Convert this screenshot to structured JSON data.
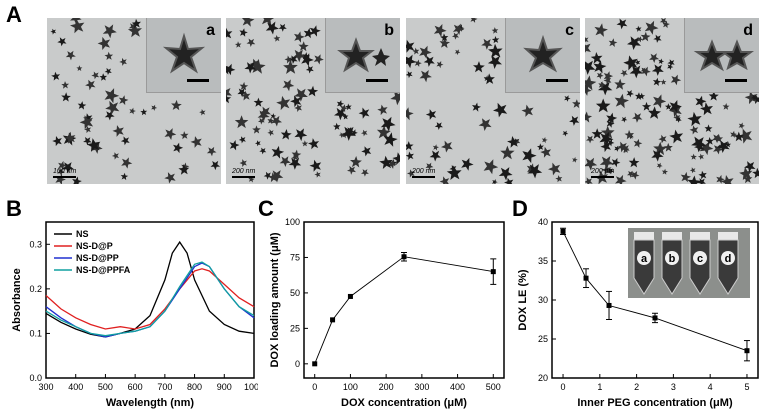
{
  "panel_labels": {
    "A": "A",
    "B": "B",
    "C": "C",
    "D": "D"
  },
  "tem_panels": [
    {
      "letter": "a",
      "scale": "100 nm"
    },
    {
      "letter": "b",
      "scale": "200 nm"
    },
    {
      "letter": "c",
      "scale": "200 nm"
    },
    {
      "letter": "d",
      "scale": "200 nm"
    }
  ],
  "chart_data": [
    {
      "id": "B",
      "type": "line",
      "xlabel": "Wavelength (nm)",
      "ylabel": "Absorbance",
      "xlim": [
        300,
        1000
      ],
      "ylim": [
        0,
        0.35
      ],
      "xticks": [
        300,
        400,
        500,
        600,
        700,
        800,
        900,
        1000
      ],
      "yticks": [
        0.0,
        0.1,
        0.2,
        0.3
      ],
      "legend_position": "top-left",
      "series": [
        {
          "name": "NS",
          "color": "#000000",
          "x": [
            300,
            350,
            400,
            450,
            500,
            550,
            600,
            650,
            700,
            725,
            750,
            775,
            800,
            850,
            900,
            950,
            1000
          ],
          "y": [
            0.145,
            0.125,
            0.11,
            0.098,
            0.092,
            0.1,
            0.11,
            0.14,
            0.22,
            0.28,
            0.305,
            0.28,
            0.22,
            0.15,
            0.12,
            0.105,
            0.1
          ]
        },
        {
          "name": "NS-D@P",
          "color": "#e02020",
          "x": [
            300,
            350,
            400,
            450,
            500,
            550,
            600,
            650,
            700,
            750,
            800,
            825,
            850,
            900,
            950,
            1000
          ],
          "y": [
            0.185,
            0.155,
            0.135,
            0.12,
            0.11,
            0.115,
            0.11,
            0.12,
            0.155,
            0.2,
            0.24,
            0.245,
            0.24,
            0.21,
            0.18,
            0.16
          ]
        },
        {
          "name": "NS-D@PP",
          "color": "#2030d0",
          "x": [
            300,
            350,
            400,
            450,
            500,
            550,
            600,
            650,
            700,
            750,
            800,
            825,
            850,
            900,
            950,
            1000
          ],
          "y": [
            0.16,
            0.135,
            0.115,
            0.1,
            0.092,
            0.1,
            0.105,
            0.115,
            0.15,
            0.2,
            0.25,
            0.258,
            0.25,
            0.2,
            0.16,
            0.135
          ]
        },
        {
          "name": "NS-D@PPFA",
          "color": "#10a0a0",
          "x": [
            300,
            350,
            400,
            450,
            500,
            550,
            600,
            650,
            700,
            750,
            800,
            825,
            850,
            900,
            950,
            1000
          ],
          "y": [
            0.15,
            0.13,
            0.115,
            0.1,
            0.095,
            0.1,
            0.105,
            0.115,
            0.15,
            0.205,
            0.255,
            0.26,
            0.25,
            0.2,
            0.16,
            0.14
          ]
        }
      ]
    },
    {
      "id": "C",
      "type": "line",
      "xlabel": "DOX concentration (μM)",
      "ylabel": "DOX loading amount (μM)",
      "xlim": [
        -30,
        530
      ],
      "ylim": [
        -10,
        100
      ],
      "xticks": [
        0,
        100,
        200,
        300,
        400,
        500
      ],
      "yticks": [
        0,
        25,
        50,
        75,
        100
      ],
      "series": [
        {
          "name": "",
          "color": "#000000",
          "x": [
            0,
            50,
            100,
            250,
            500
          ],
          "y": [
            0,
            31,
            47.5,
            75.5,
            65
          ],
          "err": [
            0,
            0,
            0,
            3,
            9
          ]
        }
      ]
    },
    {
      "id": "D",
      "type": "line",
      "xlabel": "Inner PEG concentration (μM)",
      "ylabel": "DOX LE (%)",
      "xlim": [
        -0.3,
        5.3
      ],
      "ylim": [
        20,
        40
      ],
      "xticks": [
        0,
        1,
        2,
        3,
        4,
        5
      ],
      "yticks": [
        20,
        25,
        30,
        35,
        40
      ],
      "inset_labels": [
        "a",
        "b",
        "c",
        "d"
      ],
      "series": [
        {
          "name": "",
          "color": "#000000",
          "x": [
            0,
            0.625,
            1.25,
            2.5,
            5
          ],
          "y": [
            38.8,
            32.8,
            29.3,
            27.7,
            23.5
          ],
          "err": [
            0.4,
            1.2,
            1.8,
            0.6,
            1.3
          ]
        }
      ]
    }
  ]
}
